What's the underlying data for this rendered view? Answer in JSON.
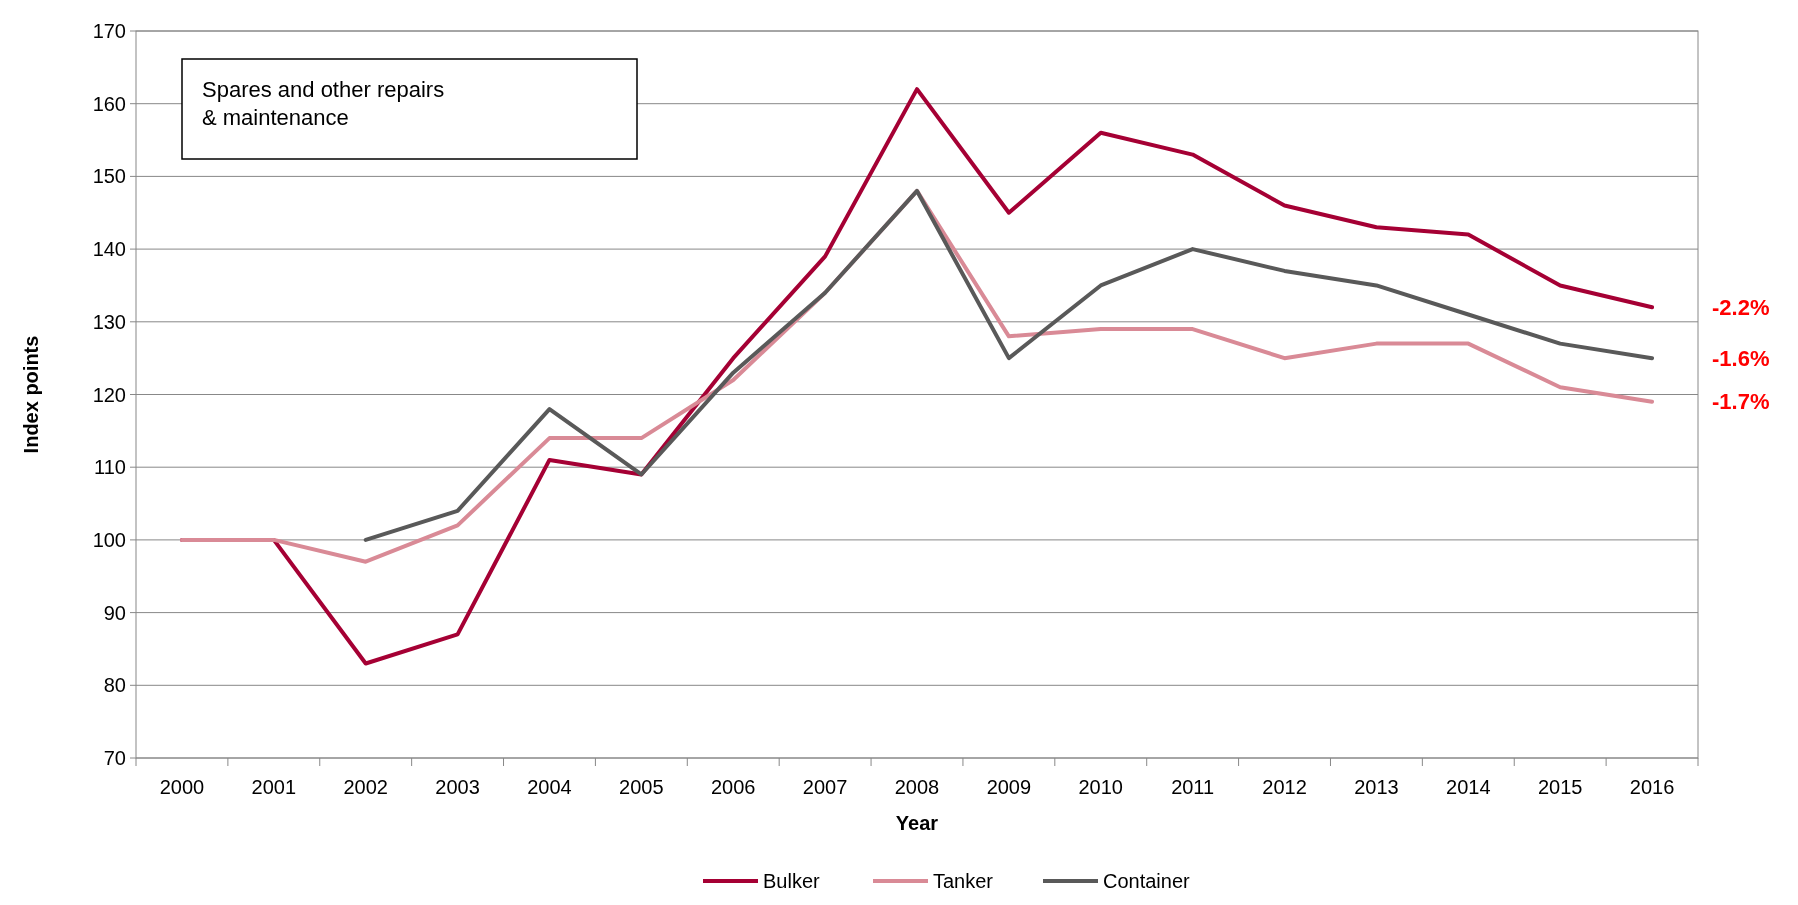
{
  "chart_data": {
    "type": "line",
    "title": "Spares and other repairs\n& maintenance",
    "xlabel": "Year",
    "ylabel": "Index points",
    "categories": [
      "2000",
      "2001",
      "2002",
      "2003",
      "2004",
      "2005",
      "2006",
      "2007",
      "2008",
      "2009",
      "2010",
      "2011",
      "2012",
      "2013",
      "2014",
      "2015",
      "2016"
    ],
    "series": [
      {
        "name": "Bulker",
        "color": "#a50034",
        "values": [
          100,
          100,
          83,
          87,
          111,
          109,
          125,
          139,
          162,
          145,
          156,
          153,
          146,
          143,
          142,
          135,
          132
        ]
      },
      {
        "name": "Tanker",
        "color": "#d98a96",
        "values": [
          100,
          100,
          97,
          102,
          114,
          114,
          122,
          134,
          148,
          128,
          129,
          129,
          125,
          127,
          127,
          121,
          119
        ]
      },
      {
        "name": "Container",
        "color": "#595959",
        "values": [
          null,
          null,
          100,
          104,
          118,
          109,
          123,
          134,
          148,
          125,
          135,
          140,
          137,
          135,
          131,
          127,
          125
        ]
      }
    ],
    "ylim": [
      70,
      170
    ],
    "yticks": [
      70,
      80,
      90,
      100,
      110,
      120,
      130,
      140,
      150,
      160,
      170
    ],
    "grid": "y",
    "legend": "bottom",
    "marker": "none",
    "line_style": "solid",
    "annotations": [
      {
        "text": "-2.2%",
        "x": "2016",
        "y": 132
      },
      {
        "text": "-1.6%",
        "x": "2016",
        "y": 125
      },
      {
        "text": "-1.7%",
        "x": "2016",
        "y": 119
      }
    ]
  }
}
